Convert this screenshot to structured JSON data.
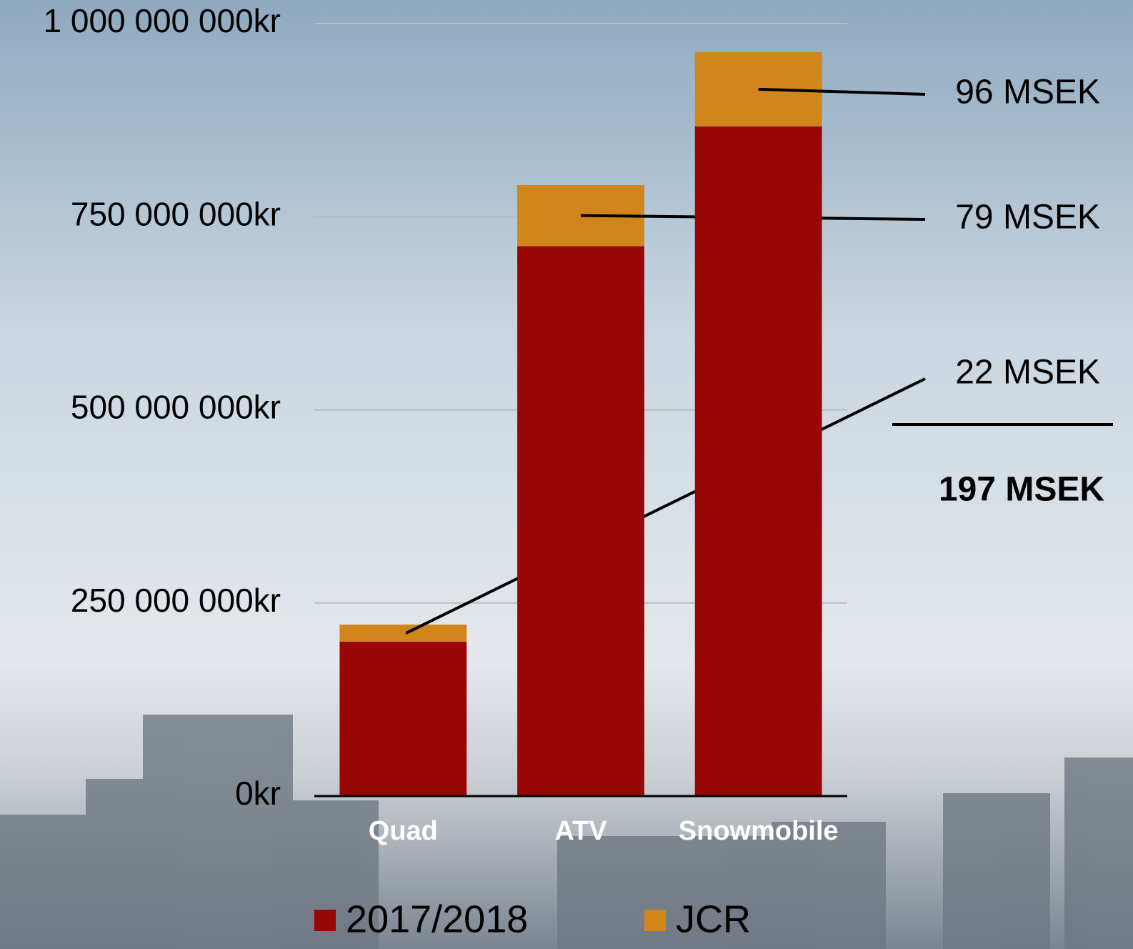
{
  "chart_data": {
    "type": "stacked_bar",
    "categories": [
      "Quad",
      "ATV",
      "Snowmobile"
    ],
    "series": [
      {
        "name": "2017/2018",
        "color": "#990606",
        "values": [
          200000000,
          712000000,
          867000000
        ]
      },
      {
        "name": "JCR",
        "color": "#d0861b",
        "values": [
          22000000,
          79000000,
          96000000
        ],
        "value_labels": [
          "22 MSEK",
          "79 MSEK",
          "96 MSEK"
        ]
      }
    ],
    "total_label": "197 MSEK",
    "ylim": [
      0,
      1000000000
    ],
    "yticks": [
      {
        "value": 0,
        "label": "0kr"
      },
      {
        "value": 250000000,
        "label": "250 000 000kr"
      },
      {
        "value": 500000000,
        "label": "500 000 000kr"
      },
      {
        "value": 750000000,
        "label": "750 000 000kr"
      },
      {
        "value": 1000000000,
        "label": "1 000 000 000kr"
      }
    ],
    "grid": true,
    "legend": "bottom"
  }
}
